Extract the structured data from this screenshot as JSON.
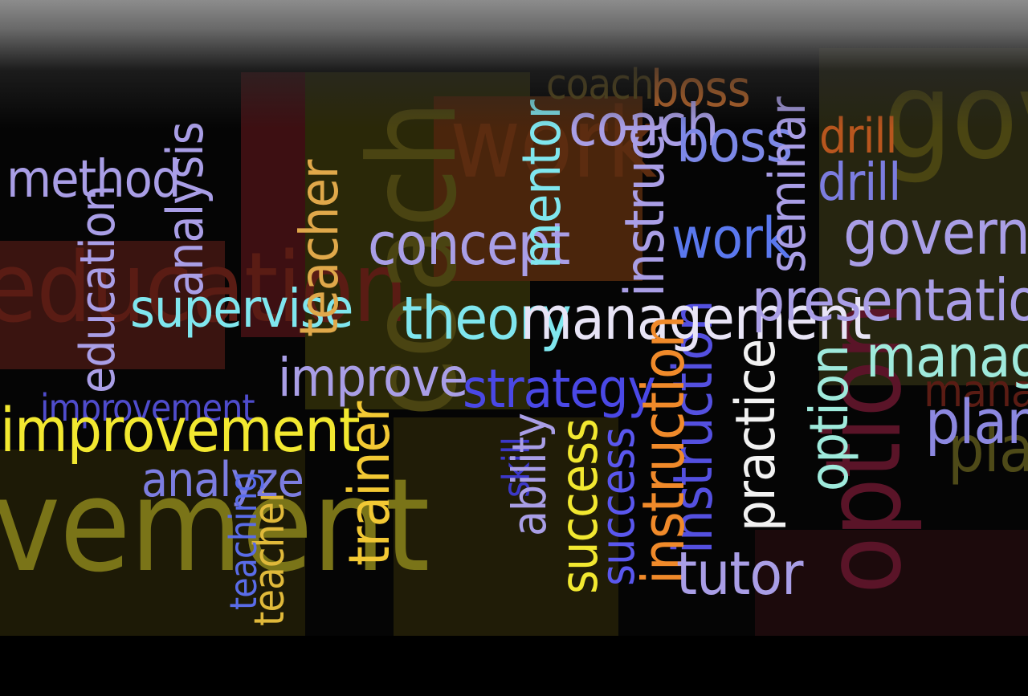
{
  "colors": {
    "background": "#050505",
    "lavender": "#a99ee6",
    "cyan": "#7fe6ee",
    "yellow": "#f2e830",
    "orange": "#f08a2a",
    "blue": "#5a57ee",
    "white": "#f2f2f2",
    "olive": "#6b6a1a",
    "maroon": "#6e1a2a"
  },
  "words": {
    "method": "method",
    "analysis": "analysis",
    "education": "education",
    "supervise": "supervise",
    "improvement": "improvement",
    "improvement_ghost": "improvement",
    "analyze": "analyze",
    "teacher": "teacher",
    "improve": "improve",
    "trainer": "trainer",
    "concept": "concept",
    "mentor": "mentor",
    "coach": "coach",
    "boss": "boss",
    "boss2": "boss",
    "instruct": "instruct",
    "work": "work",
    "seminar": "seminar",
    "drill": "drill",
    "drill2": "drill",
    "govern": "govern",
    "theory": "theory",
    "management": "management",
    "presentation": "presentation",
    "manager": "manager",
    "plan": "plan",
    "strategy": "strategy",
    "ability": "ability",
    "success": "success",
    "instruction": "instruction",
    "instruction2": "instruction",
    "practice": "practice",
    "option": "option",
    "tutor": "tutor",
    "teaching": "teaching",
    "skill": "skill",
    "gov": "gov",
    "education_bg": "education",
    "improvement_bg": "vement",
    "coach_bg": "coach",
    "option_bg": "option",
    "plan_bg": "plan",
    "manager_bg": "manager",
    "work_bg": "work"
  }
}
